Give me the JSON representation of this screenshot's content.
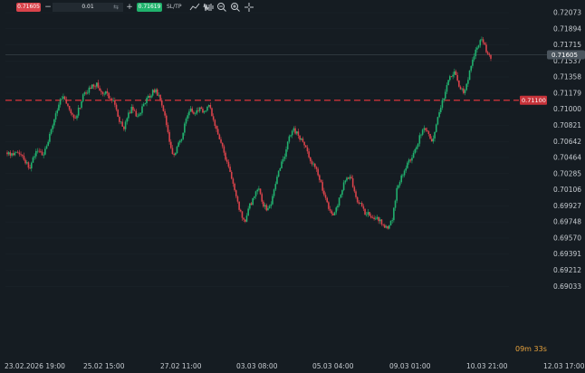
{
  "toolbar": {
    "sell_price": "0.71605",
    "quantity": "0.01",
    "buy_price": "0.71619",
    "sltp_label": "SL/TP",
    "icons": [
      "indicator-icon",
      "waveform-icon",
      "zoom-out-icon",
      "zoom-in-icon",
      "crosshair-icon"
    ]
  },
  "chart_data": {
    "type": "candlestick",
    "current_price": "0.71605",
    "alert_price": "0.71100",
    "countdown": "09m 33s",
    "y_ticks": [
      "0.72073",
      "0.71894",
      "0.71715",
      "0.71537",
      "0.71358",
      "0.71179",
      "0.71000",
      "0.70821",
      "0.70642",
      "0.70464",
      "0.70285",
      "0.70106",
      "0.69927",
      "0.69748",
      "0.69570",
      "0.69391",
      "0.69212",
      "0.69033"
    ],
    "x_ticks": [
      "23.02.2026 19:00",
      "25.02 15:00",
      "27.02 11:00",
      "03.03 08:00",
      "05.03 04:00",
      "09.03 01:00",
      "10.03 21:00",
      "12.03 17:00"
    ],
    "close_path": [
      0.7052,
      0.7049,
      0.7055,
      0.705,
      0.7042,
      0.7036,
      0.7049,
      0.7054,
      0.705,
      0.7062,
      0.708,
      0.7097,
      0.7115,
      0.7111,
      0.7096,
      0.7089,
      0.71,
      0.7115,
      0.712,
      0.7125,
      0.7128,
      0.7118,
      0.712,
      0.7112,
      0.7107,
      0.7088,
      0.7079,
      0.7095,
      0.7102,
      0.709,
      0.71,
      0.711,
      0.7117,
      0.7122,
      0.7114,
      0.7098,
      0.7071,
      0.7048,
      0.7058,
      0.7068,
      0.709,
      0.7101,
      0.7095,
      0.7102,
      0.7096,
      0.7108,
      0.7088,
      0.7074,
      0.7058,
      0.7042,
      0.7028,
      0.7004,
      0.6986,
      0.6974,
      0.6993,
      0.7,
      0.7013,
      0.6996,
      0.6988,
      0.6998,
      0.702,
      0.7036,
      0.705,
      0.7068,
      0.7078,
      0.707,
      0.7064,
      0.7052,
      0.7042,
      0.7032,
      0.7018,
      0.7,
      0.6988,
      0.6981,
      0.6998,
      0.7016,
      0.7026,
      0.702,
      0.7,
      0.6994,
      0.6984,
      0.6983,
      0.698,
      0.6977,
      0.6971,
      0.6966,
      0.6979,
      0.701,
      0.7025,
      0.7034,
      0.7045,
      0.7054,
      0.7068,
      0.708,
      0.7075,
      0.7062,
      0.7086,
      0.7106,
      0.7122,
      0.7138,
      0.714,
      0.7126,
      0.712,
      0.7136,
      0.7158,
      0.717,
      0.7178,
      0.7166,
      0.7158
    ]
  }
}
